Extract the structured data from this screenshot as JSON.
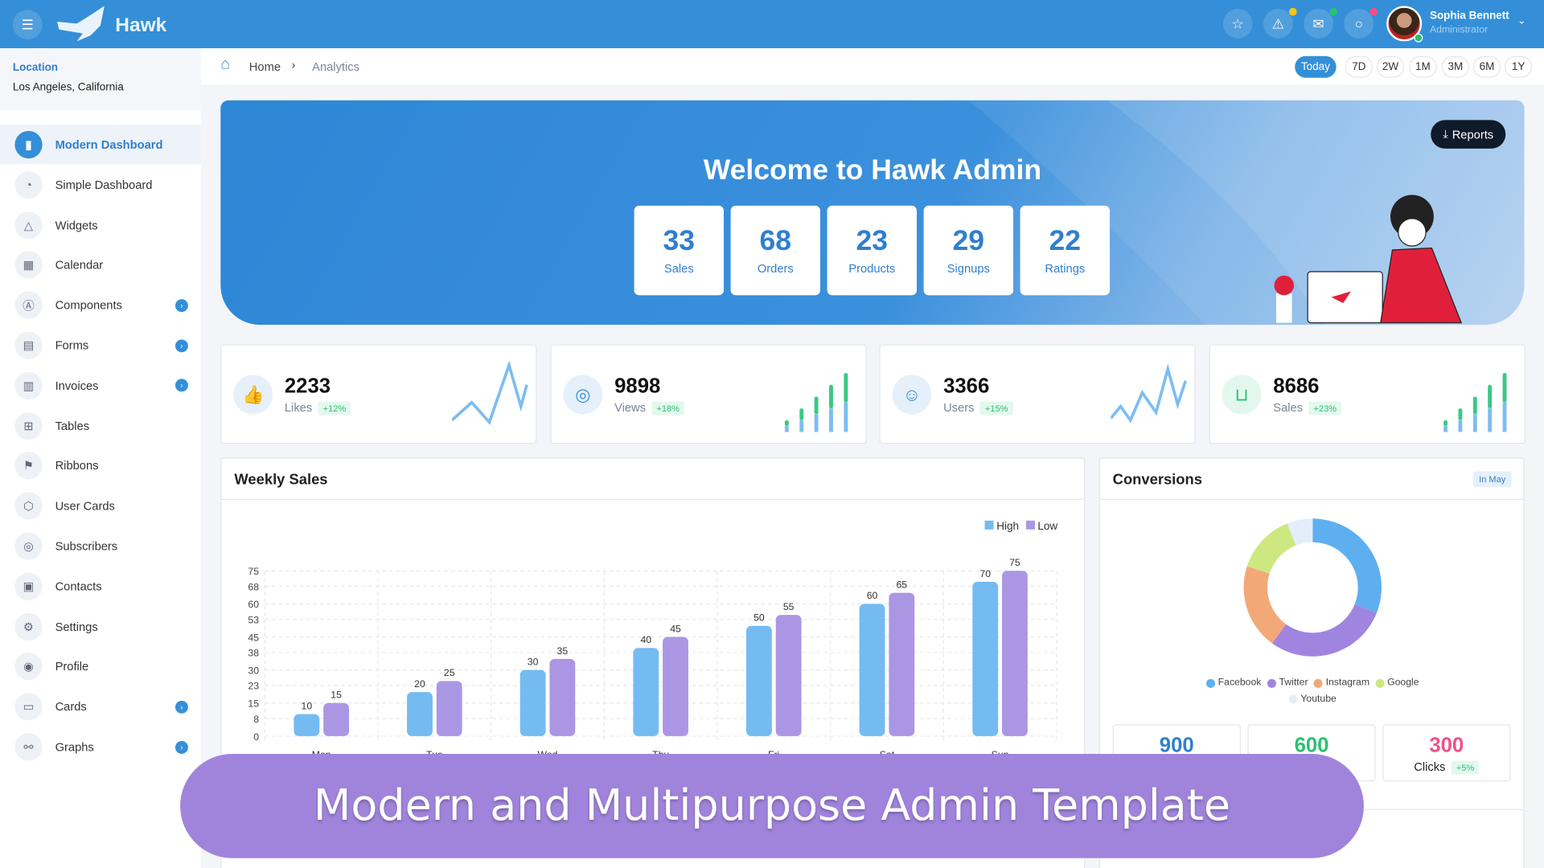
{
  "header": {
    "brand": "Hawk",
    "user": {
      "name": "Sophia Bennett",
      "role": "Administrator"
    },
    "icons": [
      {
        "name": "star-icon",
        "dot": null
      },
      {
        "name": "alert-icon",
        "dot": "#f5c518"
      },
      {
        "name": "mail-icon",
        "dot": "#2bbf74"
      },
      {
        "name": "chat-icon",
        "dot": "#f0508a"
      }
    ]
  },
  "sidebar": {
    "location_label": "Location",
    "location_value": "Los Angeles, California",
    "items": [
      {
        "label": "Modern Dashboard",
        "icon": "chart-icon",
        "active": true,
        "sub": false
      },
      {
        "label": "Simple Dashboard",
        "icon": "pie-icon",
        "sub": false
      },
      {
        "label": "Widgets",
        "icon": "triangle-icon",
        "sub": false
      },
      {
        "label": "Calendar",
        "icon": "calendar-icon",
        "sub": false
      },
      {
        "label": "Components",
        "icon": "components-icon",
        "sub": true
      },
      {
        "label": "Forms",
        "icon": "forms-icon",
        "sub": true
      },
      {
        "label": "Invoices",
        "icon": "invoice-icon",
        "sub": true
      },
      {
        "label": "Tables",
        "icon": "table-icon",
        "sub": false
      },
      {
        "label": "Ribbons",
        "icon": "bookmark-icon",
        "sub": false
      },
      {
        "label": "User Cards",
        "icon": "box-icon",
        "sub": false
      },
      {
        "label": "Subscribers",
        "icon": "fingerprint-icon",
        "sub": false
      },
      {
        "label": "Contacts",
        "icon": "contact-icon",
        "sub": false
      },
      {
        "label": "Settings",
        "icon": "gear-icon",
        "sub": false
      },
      {
        "label": "Profile",
        "icon": "user-icon",
        "sub": false
      },
      {
        "label": "Cards",
        "icon": "card-icon",
        "sub": true
      },
      {
        "label": "Graphs",
        "icon": "graph-icon",
        "sub": true
      }
    ]
  },
  "breadcrumb": {
    "home": "Home",
    "current": "Analytics"
  },
  "ranges": {
    "items": [
      "Today",
      "7D",
      "2W",
      "1M",
      "3M",
      "6M",
      "1Y"
    ],
    "selected": "Today"
  },
  "hero": {
    "title": "Welcome to Hawk Admin",
    "reports_label": "Reports",
    "kpis": [
      {
        "value": "33",
        "label": "Sales"
      },
      {
        "value": "68",
        "label": "Orders"
      },
      {
        "value": "23",
        "label": "Products"
      },
      {
        "value": "29",
        "label": "Signups"
      },
      {
        "value": "22",
        "label": "Ratings"
      }
    ]
  },
  "stats": [
    {
      "value": "2233",
      "label": "Likes",
      "change": "+12%",
      "icon": "thumbs-up-icon",
      "spark": "line"
    },
    {
      "value": "9898",
      "label": "Views",
      "change": "+18%",
      "icon": "eye-icon",
      "spark": "bar"
    },
    {
      "value": "3366",
      "label": "Users",
      "change": "+15%",
      "icon": "user-circle-icon",
      "spark": "line"
    },
    {
      "value": "8686",
      "label": "Sales",
      "change": "+23%",
      "icon": "basket-icon",
      "spark": "bar"
    }
  ],
  "colors": {
    "primary": "#348fd8",
    "high": "#74bbf2",
    "low": "#ab96e4",
    "banner": "#a084dc"
  },
  "chart_data": [
    {
      "type": "bar",
      "title": "Weekly Sales",
      "categories": [
        "Mon",
        "Tue",
        "Wed",
        "Thu",
        "Fri",
        "Sat",
        "Sun"
      ],
      "series": [
        {
          "name": "High",
          "values": [
            10,
            20,
            30,
            40,
            50,
            60,
            70
          ]
        },
        {
          "name": "Low",
          "values": [
            15,
            25,
            35,
            45,
            55,
            65,
            75
          ]
        }
      ],
      "yticks": [
        "0",
        "8",
        "15",
        "23",
        "30",
        "38",
        "45",
        "53",
        "60",
        "68",
        "75"
      ],
      "ylim": [
        0,
        75
      ],
      "grid": true,
      "legend": "top-right"
    },
    {
      "type": "pie",
      "title": "Conversions",
      "badge": "In May",
      "labels": [
        "Facebook",
        "Twitter",
        "Instagram",
        "Google",
        "Youtube"
      ],
      "values": [
        31,
        29,
        20,
        14,
        6
      ],
      "colors": [
        "#5eaff0",
        "#a085e0",
        "#f3a878",
        "#cde880",
        "#e4eefa"
      ],
      "legend": "bottom"
    }
  ],
  "conversion_totals": [
    {
      "value": "900",
      "color": "#2f7fcf"
    },
    {
      "value": "600",
      "color": "#2bbf74"
    },
    {
      "value": "300",
      "color": "#f0508a",
      "label": "Clicks",
      "change": "+5%"
    }
  ],
  "banner": "Modern and Multipurpose Admin Template"
}
